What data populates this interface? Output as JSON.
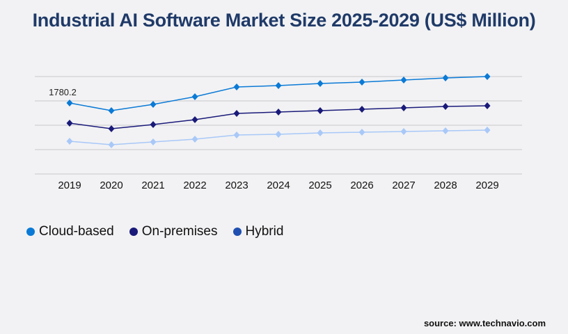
{
  "chart_data": {
    "type": "line",
    "title": "Industrial AI Software Market Size 2025-2029 (US$ Million)",
    "categories": [
      "2019",
      "2020",
      "2021",
      "2022",
      "2023",
      "2024",
      "2025",
      "2026",
      "2027",
      "2028",
      "2029"
    ],
    "series": [
      {
        "name": "Cloud-based",
        "color": "#0a7ad6",
        "line_color": "#0a7ad6",
        "values": [
          1780.2,
          1588,
          1745,
          1937,
          2181,
          2216,
          2269,
          2304,
          2356,
          2408,
          2443
        ]
      },
      {
        "name": "On-premises",
        "color": "#1a1a7a",
        "line_color": "#1a1a7a",
        "values": [
          1274,
          1134,
          1239,
          1361,
          1518,
          1553,
          1588,
          1623,
          1658,
          1693,
          1710
        ]
      },
      {
        "name": "Hybrid",
        "color": "#1f4fb0",
        "line_color": "#a8c8f8",
        "values": [
          820,
          733,
          803,
          873,
          977,
          995,
          1030,
          1047,
          1065,
          1082,
          1099
        ]
      }
    ],
    "data_labels": [
      {
        "series": "Cloud-based",
        "category": "2019",
        "text": "1780.2"
      }
    ],
    "ylim": [
      0,
      2443
    ],
    "grid": true,
    "legend": "bottom-left",
    "xlabel": "",
    "ylabel": ""
  },
  "source": "source: www.technavio.com"
}
